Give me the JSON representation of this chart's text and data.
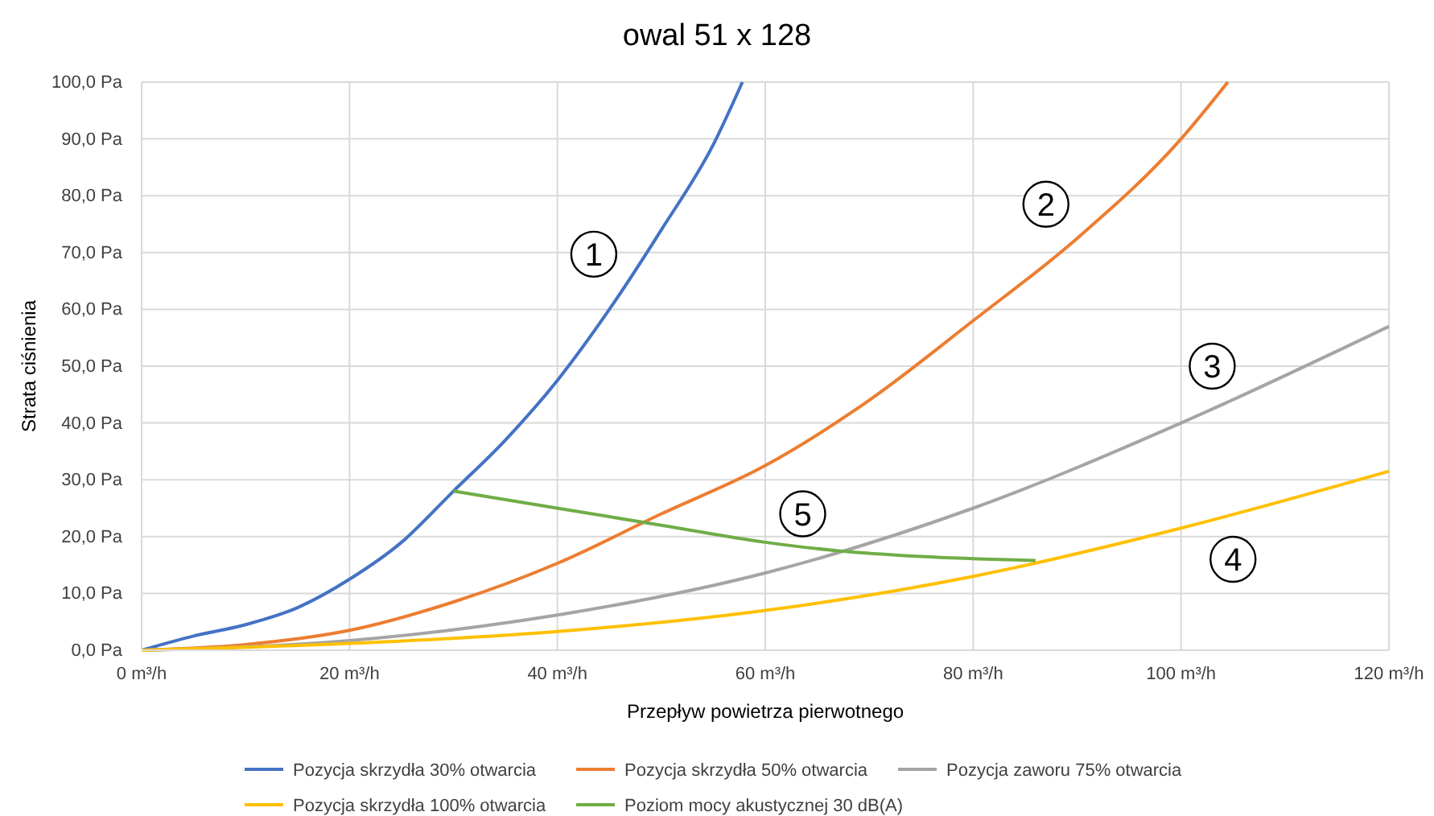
{
  "chart_data": {
    "type": "line",
    "title": "owal 51 x 128",
    "xlabel": "Przepływ powietrza pierwotnego",
    "ylabel": "Strata ciśnienia",
    "xlim": [
      0,
      120
    ],
    "ylim": [
      0,
      100
    ],
    "xticks": [
      {
        "value": 0,
        "label": "0 m³/h"
      },
      {
        "value": 20,
        "label": "20 m³/h"
      },
      {
        "value": 40,
        "label": "40 m³/h"
      },
      {
        "value": 60,
        "label": "60 m³/h"
      },
      {
        "value": 80,
        "label": "80 m³/h"
      },
      {
        "value": 100,
        "label": "100 m³/h"
      },
      {
        "value": 120,
        "label": "120 m³/h"
      }
    ],
    "yticks": [
      {
        "value": 0,
        "label": "0,0 Pa"
      },
      {
        "value": 10,
        "label": "10,0 Pa"
      },
      {
        "value": 20,
        "label": "20,0 Pa"
      },
      {
        "value": 30,
        "label": "30,0 Pa"
      },
      {
        "value": 40,
        "label": "40,0 Pa"
      },
      {
        "value": 50,
        "label": "50,0 Pa"
      },
      {
        "value": 60,
        "label": "60,0 Pa"
      },
      {
        "value": 70,
        "label": "70,0 Pa"
      },
      {
        "value": 80,
        "label": "80,0 Pa"
      },
      {
        "value": 90,
        "label": "90,0 Pa"
      },
      {
        "value": 100,
        "label": "100,0 Pa"
      }
    ],
    "grid": true,
    "legend": "bottom",
    "marker": "none",
    "line_style": "solid",
    "series": [
      {
        "name": "Pozycja skrzydła 30% otwarcia",
        "color": "#4472c4",
        "x": [
          0,
          5,
          10,
          15,
          20,
          25,
          30,
          35,
          40,
          45,
          50,
          55,
          57.8
        ],
        "values": [
          0,
          2.5,
          4.5,
          7.5,
          12.5,
          19,
          28,
          37,
          47.5,
          60,
          74,
          89,
          100
        ]
      },
      {
        "name": "Pozycja skrzydła 50% otwarcia",
        "color": "#ed7d31",
        "x": [
          0,
          10,
          20,
          30,
          40,
          50,
          60,
          70,
          80,
          90,
          100,
          104.5
        ],
        "values": [
          0,
          1,
          3.5,
          8.5,
          15.3,
          24,
          32.5,
          44,
          58,
          72.5,
          90,
          100
        ]
      },
      {
        "name": "Pozycja zaworu 75% otwarcia",
        "color": "#a5a5a5",
        "x": [
          0,
          20,
          40,
          60,
          80,
          100,
          120
        ],
        "values": [
          0,
          1.7,
          6.2,
          13.6,
          25,
          40,
          57
        ]
      },
      {
        "name": "Pozycja skrzydła 100% otwarcia",
        "color": "#ffc000",
        "x": [
          0,
          20,
          40,
          60,
          80,
          100,
          120
        ],
        "values": [
          0,
          1.2,
          3.3,
          7,
          13,
          21.5,
          31.5
        ]
      },
      {
        "name": "Poziom mocy akustycznej 30 dB(A)",
        "color": "#70ad47",
        "x": [
          30,
          40,
          50,
          60,
          67,
          75,
          86
        ],
        "values": [
          28,
          25,
          22,
          19,
          17.5,
          16.5,
          15.8
        ]
      }
    ],
    "annotations": [
      {
        "text": "1",
        "x": 43.5,
        "y": 69.7
      },
      {
        "text": "2",
        "x": 87,
        "y": 78.5
      },
      {
        "text": "3",
        "x": 103,
        "y": 50
      },
      {
        "text": "4",
        "x": 105,
        "y": 16
      },
      {
        "text": "5",
        "x": 63.6,
        "y": 24
      }
    ]
  }
}
